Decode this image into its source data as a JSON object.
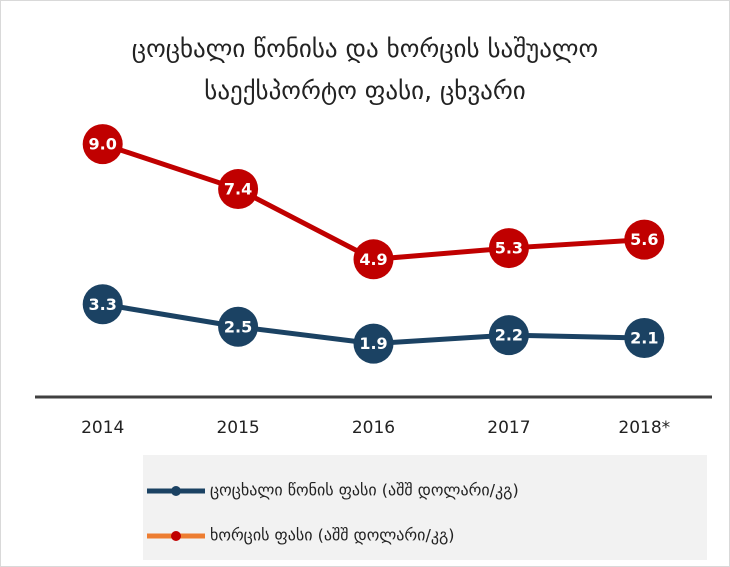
{
  "chart_data": {
    "type": "line",
    "title": "ცოცხალი წონისა და ხორცის საშუალო საექსპორტო ფასი, ცხვარი",
    "categories": [
      "2014",
      "2015",
      "2016",
      "2017",
      "2018*"
    ],
    "ylim": [
      0,
      10
    ],
    "series": [
      {
        "name": "ცოცხალი წონის ფასი (აშშ დოლარი/კგ)",
        "color": "#1b4263",
        "legend_color": "#1b4263",
        "values": [
          3.3,
          2.5,
          1.9,
          2.2,
          2.1
        ],
        "value_labels": [
          "3.3",
          "2.5",
          "1.9",
          "2.2",
          "2.1"
        ]
      },
      {
        "name": "ხორცის ფასი (აშშ დოლარი/კგ)",
        "color": "#c00000",
        "legend_color": "#ed7d31",
        "values": [
          9.0,
          7.4,
          4.9,
          5.3,
          5.6
        ],
        "value_labels": [
          "9.0",
          "7.4",
          "4.9",
          "5.3",
          "5.6"
        ]
      }
    ]
  }
}
